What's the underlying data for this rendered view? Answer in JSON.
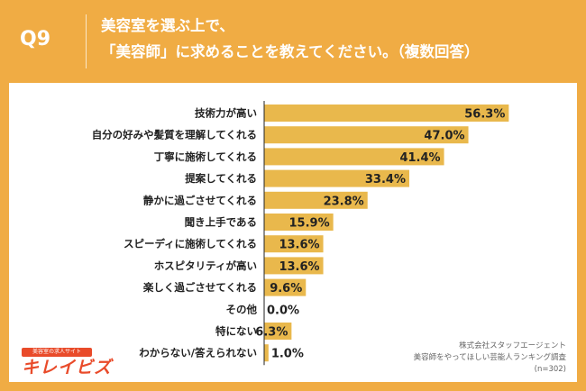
{
  "header": {
    "qnum": "Q9",
    "line1": "美容室を選ぶ上で、",
    "line2": "「美容師」に求めることを教えてください。（複数回答）"
  },
  "chart_data": {
    "type": "bar",
    "orientation": "horizontal",
    "categories": [
      "技術力が高い",
      "自分の好みや髪質を理解してくれる",
      "丁寧に施術してくれる",
      "提案してくれる",
      "静かに過ごさせてくれる",
      "聞き上手である",
      "スピーディに施術してくれる",
      "ホスピタリティが高い",
      "楽しく過ごさせてくれる",
      "その他",
      "特にない",
      "わからない/答えられない"
    ],
    "values": [
      56.3,
      47.0,
      41.4,
      33.4,
      23.8,
      15.9,
      13.6,
      13.6,
      9.6,
      0.0,
      6.3,
      1.0
    ],
    "value_labels": [
      "56.3%",
      "47.0%",
      "41.4%",
      "33.4%",
      "23.8%",
      "15.9%",
      "13.6%",
      "13.6%",
      "9.6%",
      "0.0%",
      "6.3%",
      "1.0%"
    ],
    "bar_color": "#E9B84C",
    "xlim": [
      0,
      60
    ],
    "grid": false,
    "legend": "none"
  },
  "source": {
    "line1": "株式会社スタッフエージェント",
    "line2": "美容師をやってほしい芸能人ランキング調査",
    "line3": "(n=302)"
  },
  "logo": {
    "tagline": "美容室の求人サイト",
    "name": "キレイビズ"
  },
  "colors": {
    "background": "#F0AC44",
    "panel": "#FFFFFF",
    "bar": "#E9B84C",
    "axis": "#222222",
    "logo": "#E94B2A"
  }
}
